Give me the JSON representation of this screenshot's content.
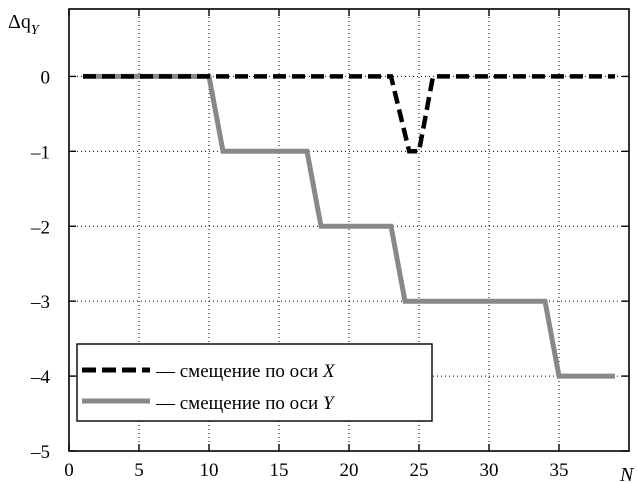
{
  "chart_data": {
    "type": "line",
    "ylabel": "Δq",
    "ylabel_sub": "Y",
    "xlabel": "N",
    "xlim": [
      0,
      40
    ],
    "ylim": [
      -5,
      0.9
    ],
    "x_ticks": [
      0,
      5,
      10,
      15,
      20,
      25,
      30,
      35
    ],
    "x_tick_labels": [
      "0",
      "5",
      "10",
      "15",
      "20",
      "25",
      "30",
      "35"
    ],
    "y_ticks": [
      0,
      -1,
      -2,
      -3,
      -4,
      -5
    ],
    "y_tick_labels": [
      "0",
      "–1",
      "–2",
      "–3",
      "–4",
      "–5"
    ],
    "grid": true,
    "legend_position": "bottom-left",
    "series": [
      {
        "name": "— смещение по оси ",
        "name_italic": "X",
        "color": "#000000",
        "style": "dashed",
        "x": [
          1,
          23,
          24.3,
          25,
          26,
          39
        ],
        "y": [
          0,
          0,
          -1,
          -1,
          0,
          0
        ]
      },
      {
        "name": "— смещение по оси ",
        "name_italic": "Y",
        "color": "#888888",
        "style": "solid",
        "x": [
          1,
          10,
          11,
          17,
          18,
          23,
          24,
          34,
          35,
          39
        ],
        "y": [
          0,
          0,
          -1,
          -1,
          -2,
          -2,
          -3,
          -3,
          -4,
          -4
        ]
      }
    ]
  }
}
